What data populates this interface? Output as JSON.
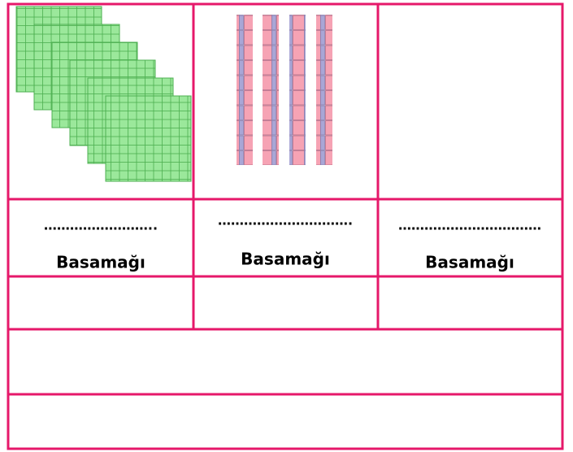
{
  "columns": [
    {
      "blank": "……………………..",
      "label": "Basamağı"
    },
    {
      "blank": "………………………….",
      "label": "Basamağı"
    },
    {
      "blank": "……………………………",
      "label": "Basamağı"
    }
  ]
}
